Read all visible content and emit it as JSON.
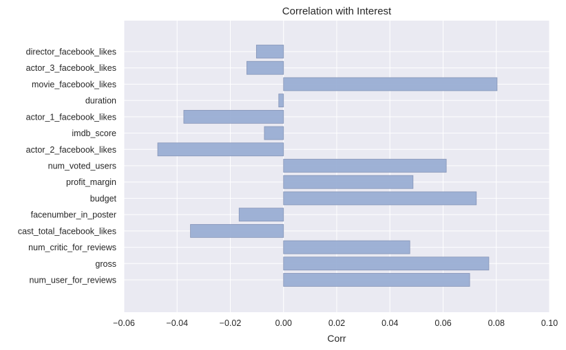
{
  "chart_data": {
    "type": "bar",
    "orientation": "horizontal",
    "title": "Correlation with Interest",
    "xlabel": "Corr",
    "ylabel": "",
    "xlim": [
      -0.06,
      0.1
    ],
    "xticks": [
      -0.06,
      -0.04,
      -0.02,
      0.0,
      0.02,
      0.04,
      0.06,
      0.08,
      0.1
    ],
    "xtick_labels": [
      "−0.06",
      "−0.04",
      "−0.02",
      "0.00",
      "0.02",
      "0.04",
      "0.06",
      "0.08",
      "0.10"
    ],
    "grid": true,
    "categories": [
      "director_facebook_likes",
      "actor_3_facebook_likes",
      "movie_facebook_likes",
      "duration",
      "actor_1_facebook_likes",
      "imdb_score",
      "actor_2_facebook_likes",
      "num_voted_users",
      "profit_margin",
      "budget",
      "facenumber_in_poster",
      "cast_total_facebook_likes",
      "num_critic_for_reviews",
      "gross",
      "num_user_for_reviews"
    ],
    "values": [
      -0.0102,
      -0.0138,
      0.0803,
      -0.0018,
      -0.0375,
      -0.0072,
      -0.0473,
      0.0612,
      0.0487,
      0.0725,
      -0.0167,
      -0.035,
      0.0475,
      0.0772,
      0.07
    ],
    "colors": {
      "bar": "#9aaed4",
      "bar_edge": "#8090b4",
      "plot_bg": "#eaeaf2",
      "grid": "#ffffff"
    }
  }
}
